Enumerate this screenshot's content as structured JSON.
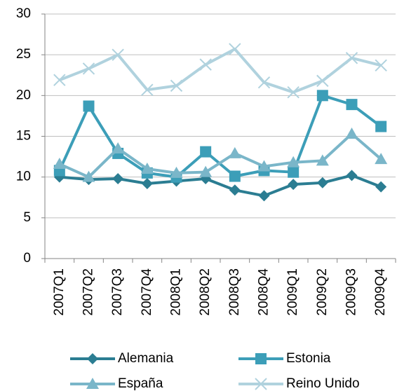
{
  "chart_data": {
    "type": "line",
    "categories": [
      "2007Q1",
      "2007Q2",
      "2007Q3",
      "2007Q4",
      "2008Q1",
      "2008Q2",
      "2008Q3",
      "2008Q4",
      "2009Q1",
      "2009Q2",
      "2009Q3",
      "2009Q4"
    ],
    "series": [
      {
        "name": "Alemania",
        "color": "#2b7d92",
        "marker": "diamond",
        "values": [
          10.0,
          9.7,
          9.8,
          9.2,
          9.5,
          9.8,
          8.4,
          7.7,
          9.1,
          9.3,
          10.2,
          8.8
        ]
      },
      {
        "name": "Estonia",
        "color": "#3c9eb8",
        "marker": "square",
        "values": [
          10.8,
          18.7,
          12.9,
          10.5,
          10.0,
          13.1,
          10.1,
          10.8,
          10.6,
          20.0,
          18.9,
          16.2
        ]
      },
      {
        "name": "España",
        "color": "#7ab6c9",
        "marker": "triangle",
        "values": [
          11.6,
          10.0,
          13.5,
          11.0,
          10.5,
          10.6,
          12.9,
          11.3,
          11.8,
          12.0,
          15.3,
          12.2
        ]
      },
      {
        "name": "Reino Unido",
        "color": "#b0d2de",
        "marker": "x",
        "values": [
          21.9,
          23.3,
          25.0,
          20.7,
          21.2,
          23.8,
          25.7,
          21.6,
          20.4,
          21.8,
          24.6,
          23.7
        ]
      }
    ],
    "ylim": [
      0,
      30
    ],
    "yticks": [
      0,
      5,
      10,
      15,
      20,
      25,
      30
    ],
    "grid": true,
    "legend": "bottom"
  }
}
